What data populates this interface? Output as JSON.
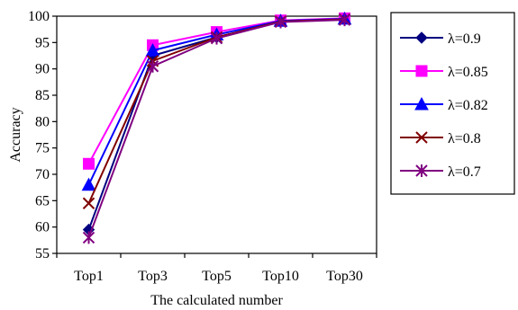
{
  "chart_data": {
    "type": "line",
    "title": "",
    "xlabel": "The calculated number",
    "ylabel": "Accuracy",
    "categories": [
      "Top1",
      "Top3",
      "Top5",
      "Top10",
      "Top30"
    ],
    "ylim": [
      55,
      100
    ],
    "yticks": [
      55,
      60,
      65,
      70,
      75,
      80,
      85,
      90,
      95,
      100
    ],
    "grid": false,
    "legend_position": "right",
    "series": [
      {
        "name": "λ=0.9",
        "values": [
          59.5,
          92.5,
          96.0,
          99.0,
          99.5
        ],
        "color": "#000080",
        "marker": "diamond"
      },
      {
        "name": "λ=0.85",
        "values": [
          72.0,
          94.5,
          97.0,
          99.2,
          99.6
        ],
        "color": "#FF00FF",
        "marker": "square"
      },
      {
        "name": "λ=0.82",
        "values": [
          68.0,
          93.5,
          96.5,
          99.1,
          99.5
        ],
        "color": "#0000FF",
        "marker": "triangle"
      },
      {
        "name": "λ=0.8",
        "values": [
          64.5,
          91.5,
          96.0,
          99.0,
          99.4
        ],
        "color": "#800000",
        "marker": "x"
      },
      {
        "name": "λ=0.7",
        "values": [
          58.0,
          90.5,
          95.8,
          98.9,
          99.3
        ],
        "color": "#800080",
        "marker": "asterisk"
      }
    ]
  }
}
